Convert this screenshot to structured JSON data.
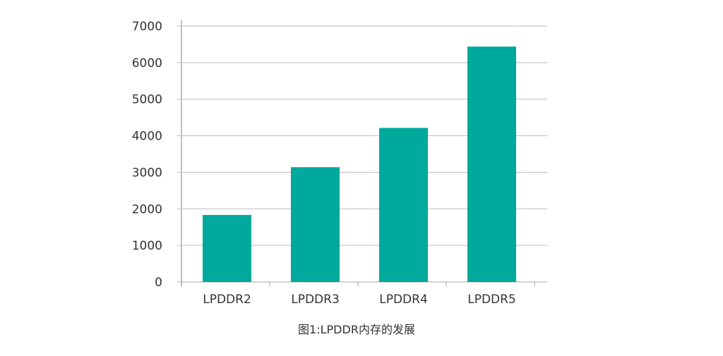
{
  "chart_data": {
    "type": "bar",
    "title": "",
    "caption": "图1:LPDDR内存的发展",
    "xlabel": "",
    "ylabel": "",
    "categories": [
      "LPDDR2",
      "LPDDR3",
      "LPDDR4",
      "LPDDR5"
    ],
    "values": [
      1834,
      3140,
      4215,
      6440
    ],
    "ylim": [
      0,
      7000
    ],
    "yticks": [
      "0",
      "1000",
      "2000",
      "3000",
      "4000",
      "5000",
      "6000",
      "7000"
    ],
    "grid": true,
    "legend": "none",
    "colors": {
      "bar": "#00A99D",
      "grid": "#BBBBBB",
      "axis": "#AAAAAA"
    }
  }
}
